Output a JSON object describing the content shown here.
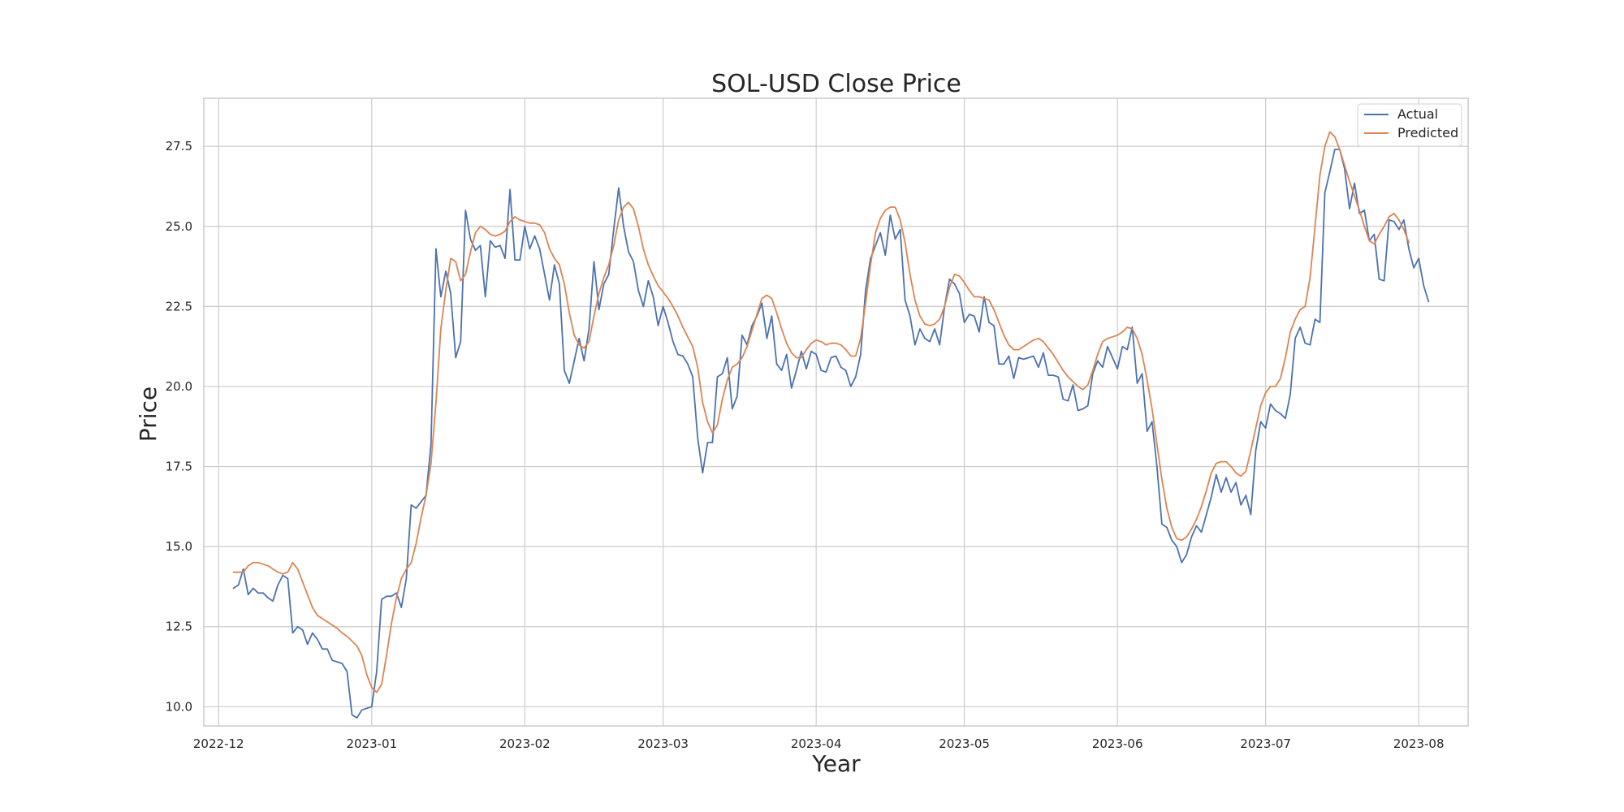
{
  "chart_data": {
    "type": "line",
    "title": "SOL-USD Close Price",
    "xlabel": "Year",
    "ylabel": "Price",
    "grid": true,
    "legend_position": "top-right",
    "xlim": [
      "2022-11-28",
      "2023-08-11"
    ],
    "ylim": [
      9.4,
      29.0
    ],
    "x_ticks": [
      "2022-12-01",
      "2023-01-01",
      "2023-02-01",
      "2023-03-01",
      "2023-04-01",
      "2023-05-01",
      "2023-06-01",
      "2023-07-01",
      "2023-08-01"
    ],
    "x_tick_labels": [
      "2022-12",
      "2023-01",
      "2023-02",
      "2023-03",
      "2023-04",
      "2023-05",
      "2023-06",
      "2023-07",
      "2023-08"
    ],
    "y_ticks": [
      10.0,
      12.5,
      15.0,
      17.5,
      20.0,
      22.5,
      25.0,
      27.5
    ],
    "y_tick_labels": [
      "10.0",
      "12.5",
      "15.0",
      "17.5",
      "20.0",
      "22.5",
      "25.0",
      "27.5"
    ],
    "start_date": "2022-12-04",
    "series": [
      {
        "name": "Actual",
        "color": "#4c72b0",
        "values": [
          13.7,
          13.8,
          14.3,
          13.5,
          13.7,
          13.55,
          13.55,
          13.4,
          13.3,
          13.8,
          14.1,
          14.0,
          12.3,
          12.5,
          12.4,
          11.95,
          12.3,
          12.1,
          11.8,
          11.8,
          11.45,
          11.4,
          11.35,
          11.1,
          9.75,
          9.65,
          9.9,
          9.95,
          10.0,
          11.1,
          13.35,
          13.45,
          13.45,
          13.55,
          13.1,
          14.0,
          16.3,
          16.2,
          16.4,
          16.6,
          18.2,
          24.3,
          22.8,
          23.6,
          22.9,
          20.9,
          21.4,
          25.5,
          24.6,
          24.25,
          24.4,
          22.8,
          24.55,
          24.35,
          24.4,
          24.0,
          26.15,
          23.95,
          23.95,
          25.0,
          24.3,
          24.7,
          24.3,
          23.5,
          22.7,
          23.8,
          23.2,
          20.5,
          20.1,
          20.8,
          21.5,
          20.8,
          21.8,
          23.9,
          22.4,
          23.2,
          23.5,
          24.9,
          26.2,
          25.0,
          24.2,
          23.9,
          23.0,
          22.5,
          23.3,
          22.8,
          21.9,
          22.5,
          22.0,
          21.4,
          21.0,
          20.95,
          20.7,
          20.3,
          18.4,
          17.3,
          18.25,
          18.25,
          20.3,
          20.4,
          20.9,
          19.3,
          19.7,
          21.6,
          21.3,
          21.9,
          22.2,
          22.6,
          21.5,
          22.2,
          20.7,
          20.5,
          21.0,
          19.95,
          20.5,
          21.1,
          20.55,
          21.1,
          21.0,
          20.5,
          20.45,
          20.9,
          20.95,
          20.6,
          20.5,
          20.0,
          20.3,
          21.0,
          23.0,
          24.0,
          24.4,
          24.8,
          24.1,
          25.35,
          24.6,
          24.9,
          22.7,
          22.2,
          21.3,
          21.8,
          21.5,
          21.4,
          21.8,
          21.3,
          22.5,
          23.35,
          23.2,
          22.9,
          22.0,
          22.25,
          22.2,
          21.7,
          22.8,
          22.0,
          21.9,
          20.7,
          20.7,
          20.95,
          20.25,
          20.9,
          20.85,
          20.9,
          20.95,
          20.6,
          21.05,
          20.35,
          20.35,
          20.3,
          19.6,
          19.55,
          20.05,
          19.25,
          19.3,
          19.4,
          20.4,
          20.8,
          20.6,
          21.25,
          20.9,
          20.55,
          21.25,
          21.15,
          21.85,
          20.1,
          20.4,
          18.6,
          18.9,
          17.5,
          15.7,
          15.6,
          15.2,
          15.0,
          14.5,
          14.75,
          15.3,
          15.65,
          15.45,
          16.0,
          16.55,
          17.25,
          16.7,
          17.15,
          16.7,
          17.0,
          16.3,
          16.6,
          16.0,
          18.0,
          18.9,
          18.7,
          19.45,
          19.25,
          19.15,
          19.0,
          19.75,
          21.5,
          21.85,
          21.35,
          21.3,
          22.1,
          22.0,
          26.05,
          26.7,
          27.4,
          27.4,
          26.8,
          25.55,
          26.35,
          25.4,
          25.5,
          24.55,
          24.75,
          23.35,
          23.3,
          25.2,
          25.15,
          24.9,
          25.2,
          24.3,
          23.7,
          24.0,
          23.15,
          22.65
        ]
      },
      {
        "name": "Predicted",
        "color": "#dd8452",
        "values": [
          14.2,
          14.2,
          14.2,
          14.4,
          14.5,
          14.5,
          14.45,
          14.4,
          14.3,
          14.2,
          14.15,
          14.2,
          14.5,
          14.3,
          13.9,
          13.5,
          13.1,
          12.85,
          12.75,
          12.65,
          12.55,
          12.45,
          12.3,
          12.2,
          12.05,
          11.9,
          11.6,
          11.0,
          10.6,
          10.45,
          10.7,
          11.6,
          12.6,
          13.4,
          14.0,
          14.3,
          14.5,
          15.1,
          15.9,
          16.6,
          17.6,
          19.5,
          21.8,
          23.0,
          24.0,
          23.9,
          23.3,
          23.5,
          24.2,
          24.8,
          25.0,
          24.9,
          24.75,
          24.7,
          24.75,
          24.85,
          25.15,
          25.3,
          25.2,
          25.15,
          25.1,
          25.1,
          25.05,
          24.8,
          24.3,
          24.0,
          23.8,
          23.2,
          22.3,
          21.6,
          21.3,
          21.2,
          21.4,
          22.2,
          22.9,
          23.4,
          23.8,
          24.4,
          25.2,
          25.6,
          25.75,
          25.55,
          25.0,
          24.3,
          23.8,
          23.45,
          23.15,
          22.95,
          22.75,
          22.5,
          22.2,
          21.85,
          21.55,
          21.25,
          20.6,
          19.5,
          18.9,
          18.55,
          18.8,
          19.6,
          20.2,
          20.6,
          20.7,
          20.9,
          21.25,
          21.75,
          22.25,
          22.75,
          22.85,
          22.75,
          22.3,
          21.8,
          21.35,
          21.05,
          20.9,
          20.9,
          21.15,
          21.35,
          21.45,
          21.4,
          21.3,
          21.35,
          21.35,
          21.3,
          21.15,
          20.95,
          20.95,
          21.5,
          22.6,
          23.8,
          24.8,
          25.25,
          25.5,
          25.6,
          25.6,
          25.2,
          24.5,
          23.5,
          22.7,
          22.2,
          21.95,
          21.9,
          21.95,
          22.1,
          22.5,
          23.1,
          23.5,
          23.45,
          23.25,
          23.0,
          22.8,
          22.8,
          22.75,
          22.7,
          22.4,
          22.0,
          21.6,
          21.3,
          21.15,
          21.15,
          21.25,
          21.35,
          21.45,
          21.5,
          21.4,
          21.2,
          21.0,
          20.75,
          20.5,
          20.3,
          20.15,
          20.0,
          19.9,
          20.05,
          20.5,
          21.0,
          21.4,
          21.5,
          21.55,
          21.6,
          21.7,
          21.85,
          21.8,
          21.5,
          21.0,
          20.2,
          19.3,
          18.2,
          17.1,
          16.2,
          15.6,
          15.25,
          15.2,
          15.3,
          15.55,
          15.85,
          16.25,
          16.75,
          17.3,
          17.6,
          17.65,
          17.65,
          17.5,
          17.3,
          17.2,
          17.35,
          18.0,
          18.7,
          19.4,
          19.8,
          20.0,
          20.0,
          20.25,
          20.9,
          21.7,
          22.1,
          22.4,
          22.5,
          23.4,
          25.0,
          26.6,
          27.5,
          27.95,
          27.8,
          27.4,
          26.9,
          26.4,
          25.95,
          25.5,
          25.0,
          24.55,
          24.45,
          24.75,
          25.0,
          25.3,
          25.4,
          25.2,
          24.9,
          24.5
        ]
      }
    ]
  }
}
